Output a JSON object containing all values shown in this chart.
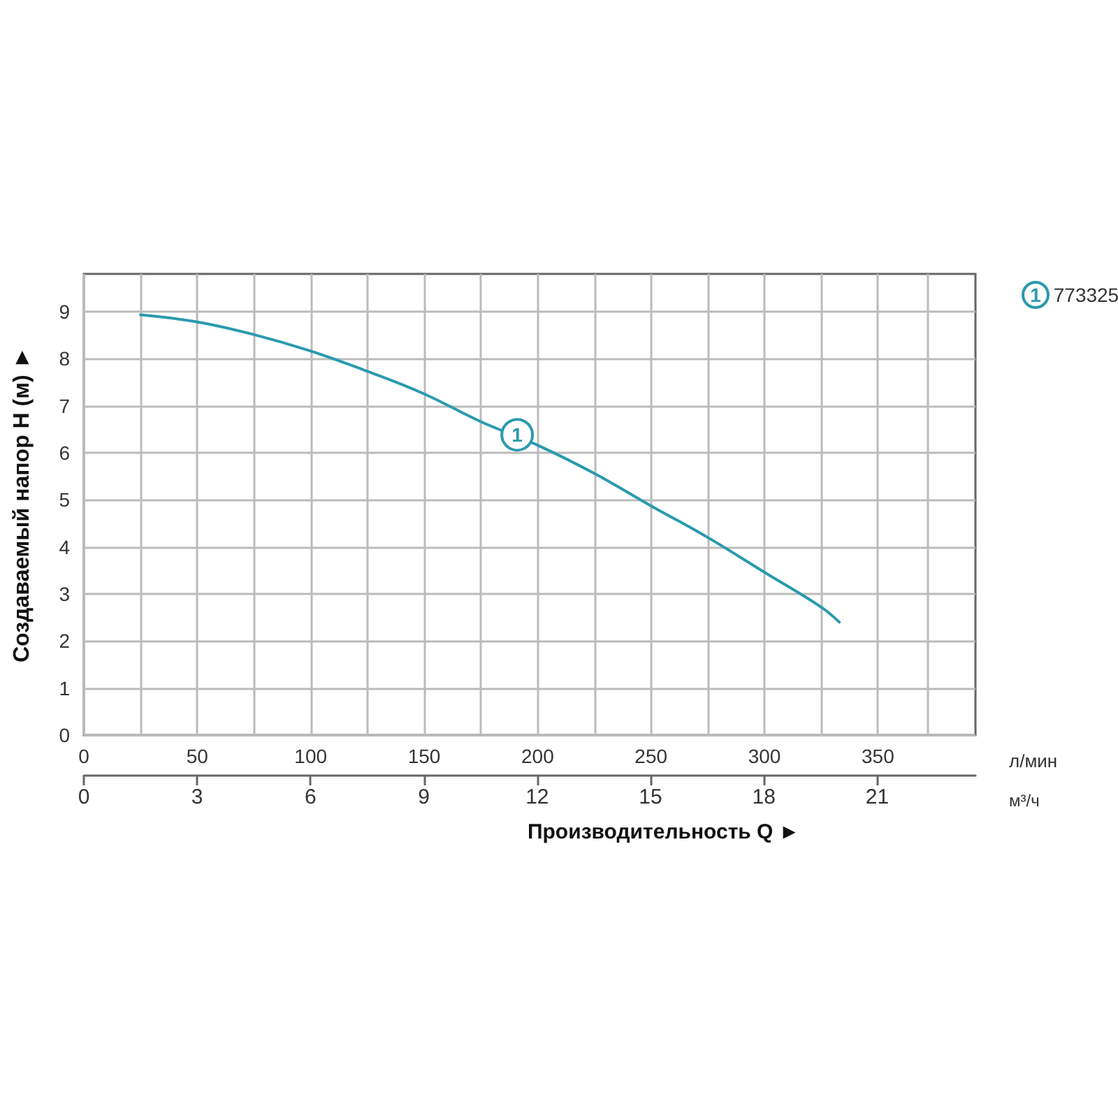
{
  "chart_data": {
    "type": "line",
    "xlabel": "л/мин",
    "x2label": "м³/ч",
    "ylabel": "Создаваемый напор H (м) ►",
    "annotations": [
      {
        "text": "1",
        "x": 191,
        "y": 6.38
      },
      "Производительность Q ►"
    ],
    "series": [
      {
        "name": "773325",
        "color": "#2b9aae",
        "x": [
          25,
          50,
          75,
          100,
          125,
          150,
          175,
          200,
          225,
          250,
          275,
          300,
          325,
          333
        ],
        "values": [
          8.93,
          8.78,
          8.51,
          8.16,
          7.73,
          7.25,
          6.66,
          6.16,
          5.56,
          4.87,
          4.2,
          3.46,
          2.72,
          2.4
        ]
      }
    ],
    "xlim": [
      0,
      393
    ],
    "xticks": [
      0,
      {
        "value": 25,
        "label": null
      },
      50,
      {
        "value": 75,
        "label": null
      },
      100,
      {
        "value": 125,
        "label": null
      },
      150,
      {
        "value": 175,
        "label": null
      },
      200,
      {
        "value": 225,
        "label": null
      },
      250,
      {
        "value": 275,
        "label": null
      },
      300,
      {
        "value": 325,
        "label": null
      },
      350,
      {
        "value": 372,
        "label": null
      }
    ],
    "x2lim": [
      0,
      23.6
    ],
    "x2ticks": [
      0,
      3,
      6,
      9,
      12,
      15,
      18,
      21
    ],
    "ylim": [
      0,
      9.8
    ],
    "yticks": [
      0,
      1,
      2,
      3,
      4,
      5,
      6,
      7,
      8,
      9
    ],
    "grid": true,
    "legend": "top right",
    "marker": "none",
    "line_style": "solid"
  }
}
